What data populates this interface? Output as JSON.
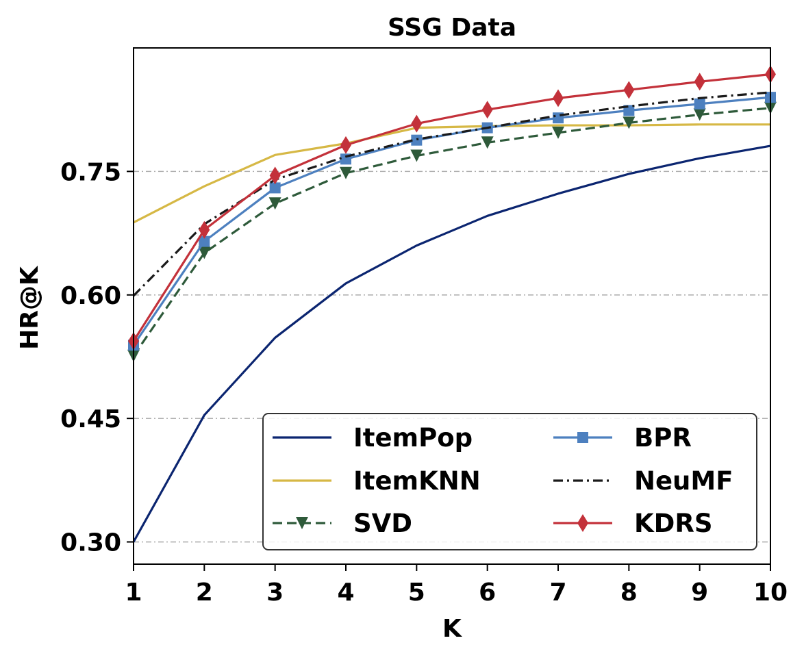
{
  "chart_data": {
    "type": "line",
    "title": "SSG Data",
    "xlabel": "K",
    "ylabel": "HR@K",
    "x": [
      1,
      2,
      3,
      4,
      5,
      6,
      7,
      8,
      9,
      10
    ],
    "xlim": [
      1,
      10
    ],
    "ylim": [
      0.273,
      0.9
    ],
    "xticks": [
      "1",
      "2",
      "3",
      "4",
      "5",
      "6",
      "7",
      "8",
      "9",
      "10"
    ],
    "yticks": [
      {
        "value": 0.3,
        "label": "0.30"
      },
      {
        "value": 0.45,
        "label": "0.45"
      },
      {
        "value": 0.6,
        "label": "0.60"
      },
      {
        "value": 0.75,
        "label": "0.75"
      }
    ],
    "grid": "horizontal dash-dot",
    "legend_position": "lower-right",
    "series": [
      {
        "name": "ItemPop",
        "color": "#0b2570",
        "dash": "solid",
        "marker": "none",
        "values": [
          0.3,
          0.454,
          0.548,
          0.614,
          0.66,
          0.696,
          0.723,
          0.747,
          0.766,
          0.781
        ]
      },
      {
        "name": "ItemKNN",
        "color": "#d6b845",
        "dash": "solid",
        "marker": "none",
        "values": [
          0.688,
          0.732,
          0.77,
          0.784,
          0.803,
          0.805,
          0.806,
          0.806,
          0.807,
          0.807
        ]
      },
      {
        "name": "SVD",
        "color": "#2e5a3a",
        "dash": "dashed",
        "marker": "triangle-down",
        "values": [
          0.526,
          0.651,
          0.711,
          0.748,
          0.769,
          0.785,
          0.797,
          0.809,
          0.819,
          0.827
        ]
      },
      {
        "name": "BPR",
        "color": "#4d80bf",
        "dash": "solid",
        "marker": "square",
        "values": [
          0.539,
          0.665,
          0.73,
          0.765,
          0.788,
          0.803,
          0.815,
          0.824,
          0.832,
          0.84
        ]
      },
      {
        "name": "NeuMF",
        "color": "#1a1a1a",
        "dash": "dashdot",
        "marker": "none",
        "values": [
          0.599,
          0.686,
          0.74,
          0.768,
          0.789,
          0.803,
          0.818,
          0.829,
          0.839,
          0.846
        ]
      },
      {
        "name": "KDRS",
        "color": "#c3313a",
        "dash": "solid",
        "marker": "diamond",
        "values": [
          0.544,
          0.679,
          0.745,
          0.782,
          0.808,
          0.825,
          0.839,
          0.849,
          0.859,
          0.868
        ]
      }
    ]
  }
}
